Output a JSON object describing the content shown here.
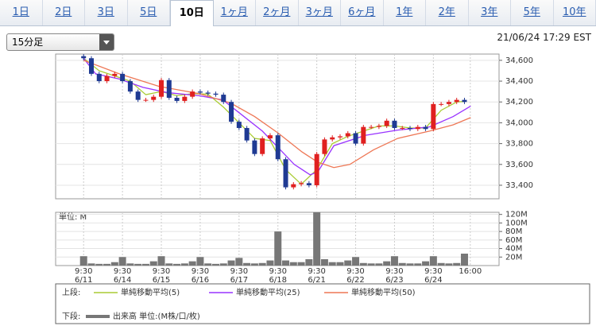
{
  "tabs": [
    "1日",
    "2日",
    "3日",
    "5日",
    "10日",
    "1ヶ月",
    "2ヶ月",
    "3ヶ月",
    "6ヶ月",
    "1年",
    "2年",
    "3年",
    "5年",
    "10年"
  ],
  "selected_tab": 4,
  "dropdown": "15分足",
  "timestamp": "21/06/24 17:29 EST",
  "chart_data": {
    "type": "candlestick",
    "up_color": "#e02020",
    "down_color": "#1f3a93",
    "x": [
      0,
      0.2,
      0.4,
      0.6,
      0.8,
      1,
      1.2,
      1.4,
      1.6,
      1.8,
      2,
      2.2,
      2.4,
      2.6,
      2.8,
      3,
      3.2,
      3.4,
      3.6,
      3.8,
      4,
      4.2,
      4.4,
      4.6,
      4.8,
      5,
      5.2,
      5.4,
      5.6,
      5.8,
      6,
      6.2,
      6.4,
      6.6,
      6.8,
      7,
      7.2,
      7.4,
      7.6,
      7.8,
      8,
      8.2,
      8.4,
      8.6,
      8.8,
      9,
      9.2,
      9.4,
      9.6,
      9.8
    ],
    "open": [
      34640,
      34620,
      34470,
      34400,
      34450,
      34470,
      34400,
      34300,
      34220,
      34220,
      34250,
      34410,
      34240,
      34210,
      34250,
      34300,
      34290,
      34280,
      34270,
      34200,
      34010,
      33950,
      33830,
      33700,
      33850,
      33880,
      33650,
      33380,
      33410,
      33420,
      33400,
      33700,
      33840,
      33860,
      33870,
      33900,
      33800,
      33960,
      33960,
      33970,
      34020,
      33950,
      33950,
      33940,
      33960,
      33940,
      34180,
      34180,
      34200,
      34220
    ],
    "high": [
      34660,
      34640,
      34490,
      34470,
      34490,
      34490,
      34420,
      34320,
      34240,
      34270,
      34430,
      34430,
      34260,
      34270,
      34320,
      34320,
      34310,
      34300,
      34290,
      34220,
      34030,
      33970,
      33850,
      33870,
      33900,
      33900,
      33670,
      33430,
      33440,
      33440,
      33720,
      33860,
      33880,
      33890,
      33920,
      33920,
      33980,
      33980,
      33990,
      34040,
      34040,
      33970,
      33970,
      33980,
      33980,
      34200,
      34200,
      34220,
      34240,
      34240
    ],
    "low": [
      34600,
      34450,
      34380,
      34380,
      34430,
      34380,
      34280,
      34200,
      34200,
      34200,
      34230,
      34220,
      34190,
      34190,
      34230,
      34270,
      34260,
      34250,
      34180,
      33990,
      33930,
      33810,
      33680,
      33680,
      33830,
      33630,
      33360,
      33360,
      33390,
      33380,
      33380,
      33680,
      33820,
      33840,
      33850,
      33780,
      33780,
      33940,
      33940,
      33950,
      33930,
      33930,
      33920,
      33920,
      33920,
      33920,
      34160,
      34160,
      34180,
      34180
    ],
    "close": [
      34620,
      34470,
      34400,
      34450,
      34470,
      34400,
      34300,
      34220,
      34220,
      34250,
      34410,
      34240,
      34210,
      34250,
      34300,
      34290,
      34280,
      34270,
      34200,
      34010,
      33950,
      33830,
      33700,
      33850,
      33880,
      33650,
      33380,
      33410,
      33420,
      33400,
      33700,
      33840,
      33860,
      33870,
      33900,
      33800,
      33960,
      33960,
      33970,
      34020,
      33950,
      33950,
      33940,
      33960,
      33940,
      34180,
      34180,
      34200,
      34220,
      34200
    ],
    "xlim": [
      -0.72,
      10.69
    ],
    "ylim": [
      33270,
      34660
    ],
    "yticks": [
      {
        "value": 34600,
        "label": "34,600"
      },
      {
        "value": 34400,
        "label": "34,400"
      },
      {
        "value": 34200,
        "label": "34,200"
      },
      {
        "value": 34000,
        "label": "34,000"
      },
      {
        "value": 33800,
        "label": "33,800"
      },
      {
        "value": 33600,
        "label": "33,600"
      },
      {
        "value": 33400,
        "label": "33,400"
      }
    ],
    "xticks": [
      {
        "value": 0,
        "label": "9:30"
      },
      {
        "value": 1,
        "label": "9:30"
      },
      {
        "value": 2,
        "label": "9:30"
      },
      {
        "value": 3,
        "label": "9:30"
      },
      {
        "value": 4,
        "label": "9:30"
      },
      {
        "value": 5,
        "label": "9:30"
      },
      {
        "value": 6,
        "label": "9:30"
      },
      {
        "value": 7,
        "label": "9:30"
      },
      {
        "value": 8,
        "label": "9:30"
      },
      {
        "value": 9,
        "label": "9:30"
      },
      {
        "value": 9.95,
        "label": "16:00"
      }
    ],
    "tick_dates": [
      "6/11",
      "6/14",
      "6/15",
      "6/16",
      "6/17",
      "6/18",
      "6/21",
      "6/22",
      "6/23",
      "6/24"
    ],
    "grid": true,
    "moving_averages": [
      {
        "name": "単純移動平均(5)",
        "color": "#aacc33",
        "x": [
          0,
          0.4,
          0.8,
          1.2,
          1.6,
          2,
          2.4,
          2.8,
          3.2,
          3.6,
          4,
          4.4,
          4.8,
          5.2,
          5.6,
          6,
          6.4,
          6.8,
          7.2,
          7.6,
          8,
          8.4,
          8.8,
          9.2,
          9.6,
          9.8
        ],
        "values": [
          34620,
          34500,
          34450,
          34400,
          34270,
          34300,
          34260,
          34280,
          34275,
          34150,
          34000,
          33850,
          33830,
          33550,
          33410,
          33550,
          33800,
          33870,
          33920,
          33970,
          33970,
          33950,
          33950,
          34120,
          34200,
          34205
        ]
      },
      {
        "name": "単純移動平均(25)",
        "color": "#9933ff",
        "x": [
          0,
          0.31,
          0.92,
          1.53,
          2.15,
          2.97,
          3.58,
          3.99,
          4.6,
          5.01,
          5.42,
          5.83,
          6.03,
          6.44,
          6.85,
          7.26,
          8.08,
          8.9,
          9.51,
          9.96
        ],
        "values": [
          34620,
          34470,
          34420,
          34340,
          34290,
          34260,
          34220,
          34100,
          33920,
          33760,
          33600,
          33500,
          33530,
          33780,
          33830,
          33880,
          33930,
          33960,
          34060,
          34160
        ]
      },
      {
        "name": "単純移動平均(50)",
        "color": "#ee7755",
        "x": [
          0,
          0.92,
          1.94,
          2.97,
          3.78,
          4.4,
          5.01,
          5.62,
          6.03,
          6.44,
          6.85,
          7.46,
          8.08,
          8.9,
          9.51,
          9.96
        ],
        "values": [
          34600,
          34470,
          34350,
          34280,
          34190,
          34060,
          33900,
          33720,
          33620,
          33570,
          33600,
          33740,
          33850,
          33920,
          33980,
          34050
        ]
      }
    ],
    "volume": {
      "name": "出来高 単位:(M株/口/枚)",
      "unit_label": "単位: M",
      "color": "#777777",
      "values": [
        22,
        5,
        4,
        4,
        8,
        20,
        5,
        4,
        4,
        10,
        22,
        5,
        4,
        5,
        10,
        20,
        5,
        4,
        5,
        12,
        18,
        6,
        5,
        6,
        12,
        80,
        12,
        8,
        8,
        15,
        125,
        15,
        8,
        8,
        12,
        20,
        6,
        5,
        5,
        10,
        22,
        6,
        5,
        5,
        10,
        22,
        6,
        5,
        6,
        28
      ],
      "ylim": [
        0,
        125
      ],
      "yticks": [
        {
          "value": 120,
          "label": "120M"
        },
        {
          "value": 100,
          "label": "100M"
        },
        {
          "value": 80,
          "label": "80M"
        },
        {
          "value": 60,
          "label": "60M"
        },
        {
          "value": 40,
          "label": "40M"
        },
        {
          "value": 20,
          "label": "20M"
        }
      ]
    },
    "legend": {
      "top_label": "上段:",
      "bottom_label": "下段:"
    }
  }
}
